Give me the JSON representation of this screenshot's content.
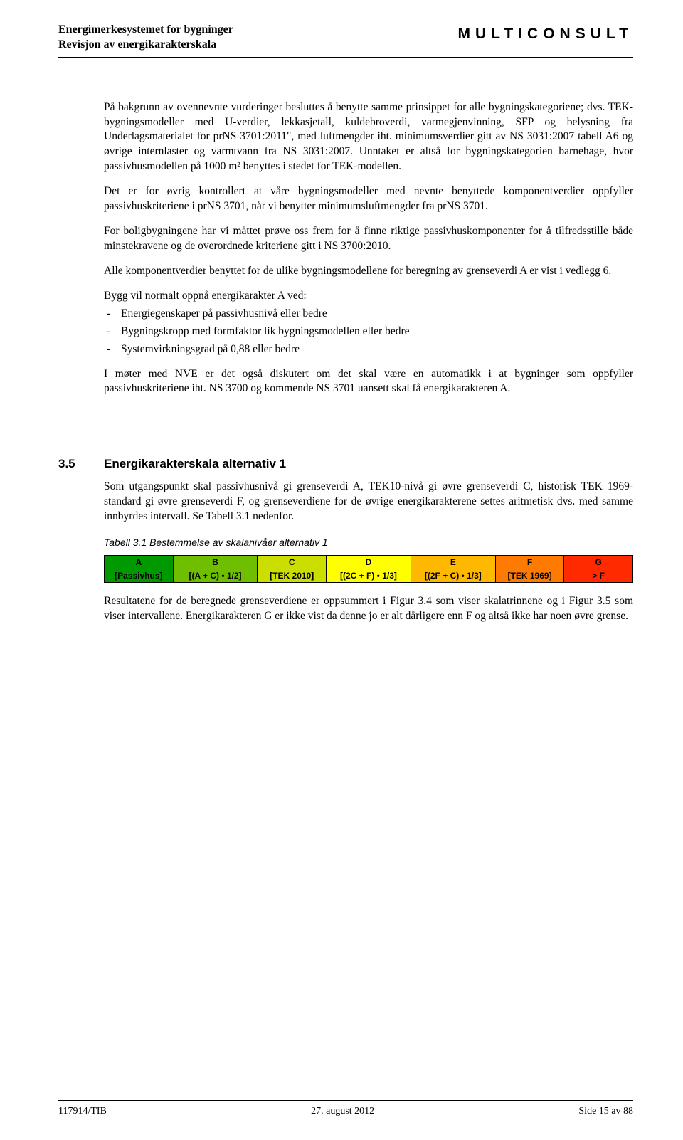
{
  "header": {
    "title_line1": "Energimerkesystemet for bygninger",
    "title_line2": "Revisjon av energikarakterskala",
    "brand": "MULTICONSULT"
  },
  "p1": "På bakgrunn av ovennevnte vurderinger besluttes å benytte samme prinsippet for alle bygningskategoriene; dvs. TEK-bygningsmodeller med U-verdier, lekkasjetall, kuldebroverdi, varmegjenvinning, SFP og belysning fra Underlagsmaterialet for prNS 3701:2011\", med luftmengder iht. minimumsverdier gitt av NS 3031:2007 tabell A6 og øvrige internlaster og varmtvann fra NS 3031:2007. Unntaket er altså for bygningskategorien barnehage, hvor passivhusmodellen på 1000 m² benyttes i stedet for TEK-modellen.",
  "p2": "Det er for øvrig kontrollert at våre bygningsmodeller med nevnte benyttede komponentverdier oppfyller passivhuskriteriene i prNS 3701, når vi benytter minimumsluftmengder fra prNS 3701.",
  "p3": "For boligbygningene har vi måttet prøve oss frem for å finne riktige passivhuskomponenter for å tilfredsstille både minstekravene og de overordnede kriteriene gitt i NS 3700:2010.",
  "p4": "Alle komponentverdier benyttet for de ulike bygningsmodellene for beregning av grenseverdi A er vist i vedlegg 6.",
  "p5": "Bygg vil normalt oppnå energikarakter A ved:",
  "bullets": [
    "Energiegenskaper på passivhusnivå eller bedre",
    "Bygningskropp med formfaktor lik bygningsmodellen eller bedre",
    "Systemvirkningsgrad på 0,88 eller bedre"
  ],
  "p6": "I møter med NVE er det også diskutert om det skal være en automatikk i at bygninger som oppfyller passivhuskriteriene iht. NS 3700 og kommende NS 3701 uansett skal få energikarakteren A.",
  "section": {
    "num": "3.5",
    "title": "Energikarakterskala alternativ 1"
  },
  "p7": "Som utgangspunkt skal passivhusnivå gi grenseverdi A, TEK10-nivå gi øvre grenseverdi C, historisk TEK 1969-standard gi øvre grenseverdi F, og grenseverdiene for de øvrige energikarakterene settes aritmetisk dvs. med samme innbyrdes intervall. Se Tabell 3.1 nedenfor.",
  "table_caption": "Tabell 3.1 Bestemmelse av skalanivåer alternativ 1",
  "scale_table": {
    "headers": [
      "A",
      "B",
      "C",
      "D",
      "E",
      "F",
      "G"
    ],
    "formulas": [
      "[Passivhus]",
      "[(A + C) • 1/2]",
      "[TEK 2010]",
      "[(2C + F) • 1/3]",
      "[(2F + C) • 1/3]",
      "[TEK 1969]",
      "> F"
    ],
    "colors": [
      "#009a00",
      "#6fbf00",
      "#ccde00",
      "#ffff00",
      "#ffb800",
      "#ff7a00",
      "#ff2a00"
    ],
    "widths_pct": [
      13,
      16,
      13,
      16,
      16,
      13,
      13
    ]
  },
  "p8": "Resultatene for de beregnede grenseverdiene er oppsummert i Figur 3.4 som viser skalatrinnene og i Figur 3.5 som viser intervallene. Energikarakteren G er ikke vist da denne jo er alt dårligere enn F og altså ikke har noen øvre grense.",
  "footer": {
    "left": "117914/TIB",
    "center": "27. august 2012",
    "right": "Side 15 av 88"
  }
}
